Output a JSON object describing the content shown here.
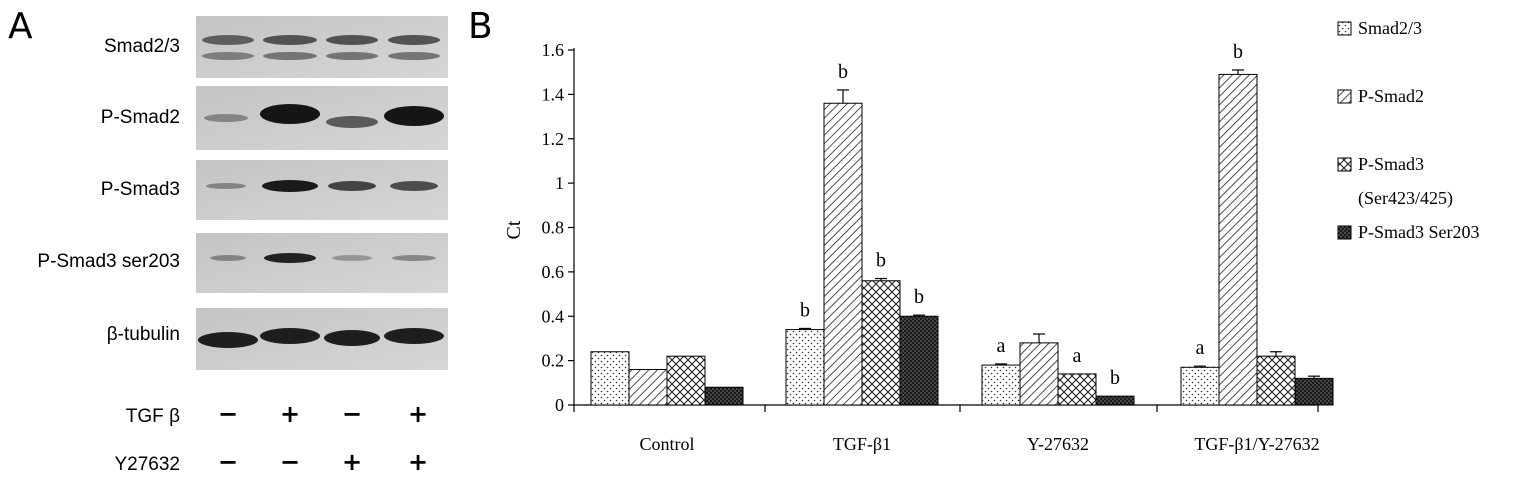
{
  "panels": {
    "a_label": "A",
    "b_label": "B"
  },
  "western_blot": {
    "rows": [
      {
        "label": "Smad2/3"
      },
      {
        "label": "P-Smad2"
      },
      {
        "label": "P-Smad3"
      },
      {
        "label": "P-Smad3 ser203"
      },
      {
        "label": "β-tubulin"
      }
    ],
    "treatments": [
      {
        "label": "TGF β",
        "signs": [
          "−",
          "+",
          "−",
          "+"
        ]
      },
      {
        "label": "Y27632",
        "signs": [
          "−",
          "−",
          "+",
          "+"
        ]
      }
    ]
  },
  "chart_data": {
    "type": "bar",
    "categories": [
      "Control",
      "TGF-β1",
      "Y-27632",
      "TGF-β1/Y-27632"
    ],
    "ylabel": "Ct",
    "xlabel": "",
    "ylim": [
      0,
      1.6
    ],
    "yticks": [
      "0",
      "0.2",
      "0.4",
      "0.6",
      "0.8",
      "1",
      "1.2",
      "1.4",
      "1.6"
    ],
    "legend_position": "right",
    "series": [
      {
        "name": "Smad2/3",
        "pattern": "dots",
        "values": [
          0.24,
          0.34,
          0.18,
          0.17
        ],
        "errors": [
          0,
          0.005,
          0.005,
          0.005
        ],
        "annotations": [
          "",
          "b",
          "a",
          "a"
        ]
      },
      {
        "name": "P-Smad2",
        "pattern": "diagonal",
        "values": [
          0.16,
          1.36,
          0.28,
          1.49
        ],
        "errors": [
          0,
          0.06,
          0.04,
          0.02
        ],
        "annotations": [
          "",
          "b",
          "",
          "b"
        ]
      },
      {
        "name": "P-Smad3\n(Ser423/425)",
        "pattern": "crosshatch",
        "values": [
          0.22,
          0.56,
          0.14,
          0.22
        ],
        "errors": [
          0,
          0.01,
          0,
          0.02
        ],
        "annotations": [
          "",
          "b",
          "a",
          ""
        ]
      },
      {
        "name": "P-Smad3 Ser203",
        "pattern": "dense",
        "values": [
          0.08,
          0.4,
          0.04,
          0.12
        ],
        "errors": [
          0,
          0.005,
          0,
          0.01
        ],
        "annotations": [
          "",
          "b",
          "b",
          ""
        ]
      }
    ]
  }
}
